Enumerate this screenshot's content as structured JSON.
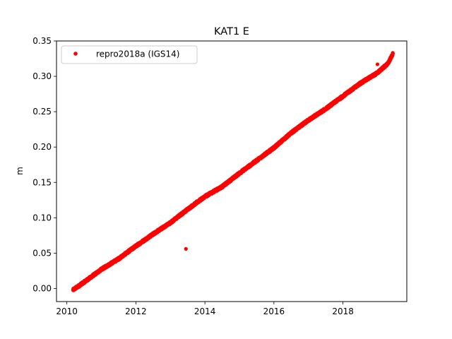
{
  "chart_data": {
    "type": "scatter",
    "title": "KAT1 E",
    "xlabel": "",
    "ylabel": "m",
    "xlim": [
      2009.7,
      2019.85
    ],
    "ylim": [
      -0.0185,
      0.35
    ],
    "xticks": [
      2010,
      2012,
      2014,
      2016,
      2018
    ],
    "yticks": [
      0.0,
      0.05,
      0.1,
      0.15,
      0.2,
      0.25,
      0.3,
      0.35
    ],
    "ytick_labels": [
      "0.00",
      "0.05",
      "0.10",
      "0.15",
      "0.20",
      "0.25",
      "0.30",
      "0.35"
    ],
    "grid": false,
    "legend_position": "top-left",
    "series": [
      {
        "name": "repro2018a (IGS14)",
        "color": "#ff0000",
        "marker": "circle",
        "trend": [
          [
            2010.18,
            -0.002
          ],
          [
            2010.5,
            0.009
          ],
          [
            2011.0,
            0.027
          ],
          [
            2011.5,
            0.042
          ],
          [
            2012.0,
            0.06
          ],
          [
            2012.5,
            0.077
          ],
          [
            2013.0,
            0.093
          ],
          [
            2013.5,
            0.112
          ],
          [
            2014.0,
            0.13
          ],
          [
            2014.5,
            0.144
          ],
          [
            2015.0,
            0.163
          ],
          [
            2015.5,
            0.181
          ],
          [
            2016.0,
            0.199
          ],
          [
            2016.5,
            0.22
          ],
          [
            2017.0,
            0.238
          ],
          [
            2017.5,
            0.254
          ],
          [
            2018.0,
            0.272
          ],
          [
            2018.5,
            0.29
          ],
          [
            2019.0,
            0.305
          ],
          [
            2019.3,
            0.318
          ],
          [
            2019.45,
            0.332
          ]
        ],
        "outliers": [
          [
            2013.45,
            0.056
          ],
          [
            2019.0,
            0.317
          ]
        ]
      }
    ]
  }
}
